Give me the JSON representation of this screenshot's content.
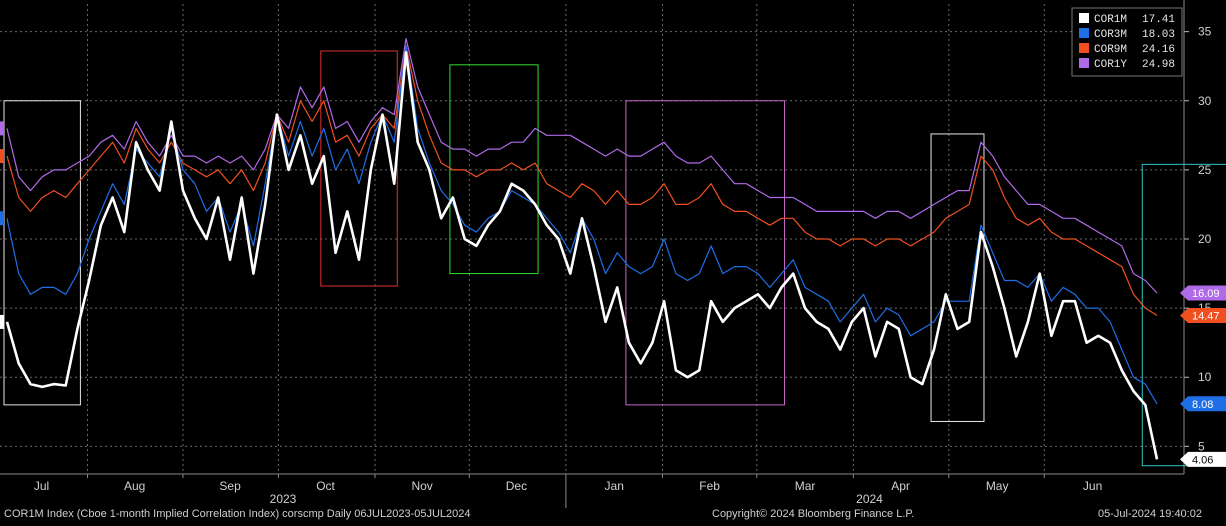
{
  "chart_data": {
    "type": "line",
    "title": "",
    "xlabel": "",
    "ylabel": "",
    "ylim": [
      3,
      37
    ],
    "y_ticks": [
      5,
      10,
      15,
      20,
      25,
      30,
      35
    ],
    "x_ticks": [
      "Jul",
      "Aug",
      "Sep",
      "Oct",
      "Nov",
      "Dec",
      "Jan",
      "Feb",
      "Mar",
      "Apr",
      "May",
      "Jun"
    ],
    "year_labels": [
      "2023",
      "2024"
    ],
    "grid": true,
    "legend_placement": "top-right",
    "series": [
      {
        "name": "COR1M",
        "legend_value": "17.41",
        "last_label": "4.06",
        "color": "#ffffff",
        "values": [
          14,
          11,
          9.5,
          9.3,
          9.5,
          9.4,
          13.5,
          17,
          21,
          23,
          20.5,
          27,
          25,
          23.5,
          28.5,
          23.5,
          21.5,
          20,
          23,
          18.5,
          23,
          17.5,
          22.5,
          29,
          25,
          27.5,
          24,
          26,
          19,
          22,
          18.5,
          25,
          29,
          24,
          33.5,
          27,
          25,
          21.5,
          23,
          20,
          19.5,
          21,
          22,
          24,
          23.5,
          22.5,
          21,
          20,
          17.5,
          21.5,
          18,
          14,
          16.5,
          12.5,
          11,
          12.5,
          15.5,
          10.5,
          10,
          10.5,
          15.5,
          14,
          15,
          15.5,
          16,
          15,
          16.5,
          17.5,
          15,
          14,
          13.5,
          12,
          14,
          15,
          11.5,
          14,
          13.5,
          10,
          9.5,
          12,
          16,
          13.5,
          14,
          20.5,
          18,
          15,
          11.5,
          14,
          17.5,
          13,
          15.5,
          15.5,
          12.5,
          13,
          12.5,
          10.5,
          9,
          8,
          4.06
        ]
      },
      {
        "name": "COR3M",
        "legend_value": "18.03",
        "last_label": "8.08",
        "color": "#1e6ee6",
        "values": [
          21.5,
          17.5,
          16,
          16.5,
          16.5,
          16,
          17.5,
          20,
          22,
          24,
          22.5,
          26.5,
          25.5,
          24.5,
          28,
          25,
          24,
          22,
          23,
          20.5,
          22.5,
          19.5,
          24,
          29,
          26,
          28.5,
          26,
          28,
          25,
          26.5,
          24,
          27,
          29,
          27,
          34,
          28,
          25.5,
          23.5,
          22.5,
          21,
          20.5,
          21.5,
          22,
          23.5,
          23,
          22.5,
          21.5,
          20.5,
          19,
          21.5,
          20,
          17.5,
          19,
          18,
          17.5,
          18,
          20,
          17.5,
          17,
          17.5,
          19.5,
          17.5,
          18,
          18,
          17.5,
          16.5,
          17.5,
          18.5,
          16.5,
          16,
          15.5,
          14,
          15,
          16,
          14,
          15,
          14.5,
          13,
          13.5,
          14,
          15.5,
          15.5,
          15.5,
          21,
          19,
          17,
          17,
          16.5,
          17.5,
          15.5,
          16.5,
          16,
          15,
          15,
          14,
          12,
          10,
          9.5,
          8.08
        ]
      },
      {
        "name": "COR9M",
        "legend_value": "24.16",
        "last_label": "14.47",
        "color": "#f05020",
        "values": [
          26,
          23,
          22,
          23,
          23.5,
          23,
          24,
          25,
          26,
          27,
          25.5,
          28,
          26.5,
          25.5,
          27,
          25.5,
          25,
          24.5,
          25,
          24,
          25,
          23.5,
          25.5,
          29,
          27,
          30,
          28.5,
          30,
          27,
          27.5,
          26,
          28,
          29,
          28,
          34,
          30,
          27.5,
          25.5,
          25,
          25,
          24.5,
          25,
          25,
          25.5,
          25,
          25.5,
          24,
          23.5,
          23,
          24,
          23.5,
          22.5,
          23.5,
          22.5,
          22.5,
          23,
          24,
          22.5,
          22.5,
          23,
          24,
          22.5,
          22,
          22,
          21.5,
          21,
          21.5,
          21.5,
          20.5,
          20,
          20,
          19.5,
          20,
          20,
          19.5,
          20,
          20,
          19.5,
          20,
          20.5,
          21.5,
          22,
          22.5,
          26,
          25,
          23,
          21.5,
          21,
          21.5,
          20.5,
          20,
          20,
          19.5,
          19,
          18.5,
          18,
          16,
          15,
          14.47
        ]
      },
      {
        "name": "COR1Y",
        "legend_value": "24.98",
        "last_label": "16.09",
        "color": "#b06ae8",
        "values": [
          28,
          24.5,
          23.5,
          24.5,
          25,
          25,
          25.5,
          26,
          27,
          27.5,
          26.5,
          28.5,
          27,
          26,
          27.5,
          26,
          26,
          25.5,
          26,
          25.5,
          26,
          25,
          26.5,
          29,
          28,
          31,
          29.5,
          31,
          28,
          28.5,
          27,
          28.5,
          29.5,
          29,
          34.5,
          31,
          29,
          27,
          26.5,
          26.5,
          26,
          26.5,
          26.5,
          27,
          27,
          28,
          27.5,
          27.5,
          27.5,
          27,
          26.5,
          26,
          26.5,
          26,
          26,
          26.5,
          27,
          26,
          25.5,
          25.5,
          26,
          25,
          24,
          24,
          23.5,
          23,
          23,
          23,
          22.5,
          22,
          22,
          22,
          22,
          22,
          21.5,
          22,
          22,
          21.5,
          22,
          22.5,
          23,
          23.5,
          23.5,
          27,
          26,
          24.5,
          23.5,
          22.5,
          22.5,
          22,
          21.5,
          21.5,
          21,
          20.5,
          20,
          19.5,
          17.5,
          17,
          16.09
        ]
      }
    ],
    "highlight_boxes": [
      {
        "color": "#e8e8e8",
        "from": 0,
        "to": 6,
        "ymin": 8,
        "ymax": 30
      },
      {
        "color": "#e03030",
        "from": 27,
        "to": 33,
        "ymin": 16.6,
        "ymax": 33.6
      },
      {
        "color": "#30e030",
        "from": 38,
        "to": 45,
        "ymin": 17.5,
        "ymax": 32.6
      },
      {
        "color": "#c868c8",
        "from": 53,
        "to": 66,
        "ymin": 8,
        "ymax": 30
      },
      {
        "color": "#e8e8e8",
        "from": 79,
        "to": 83,
        "ymin": 6.8,
        "ymax": 27.6
      },
      {
        "color": "#30c8c8",
        "from": 97,
        "to": 104,
        "ymin": 3.6,
        "ymax": 25.4
      }
    ]
  },
  "footer": {
    "left": "COR1M Index (Cboe 1-month Implied Correlation Index) corscmp  Daily 06JUL2023-05JUL2024",
    "center": "Copyright© 2024 Bloomberg Finance L.P.",
    "right": "05-Jul-2024 19:40:02"
  }
}
